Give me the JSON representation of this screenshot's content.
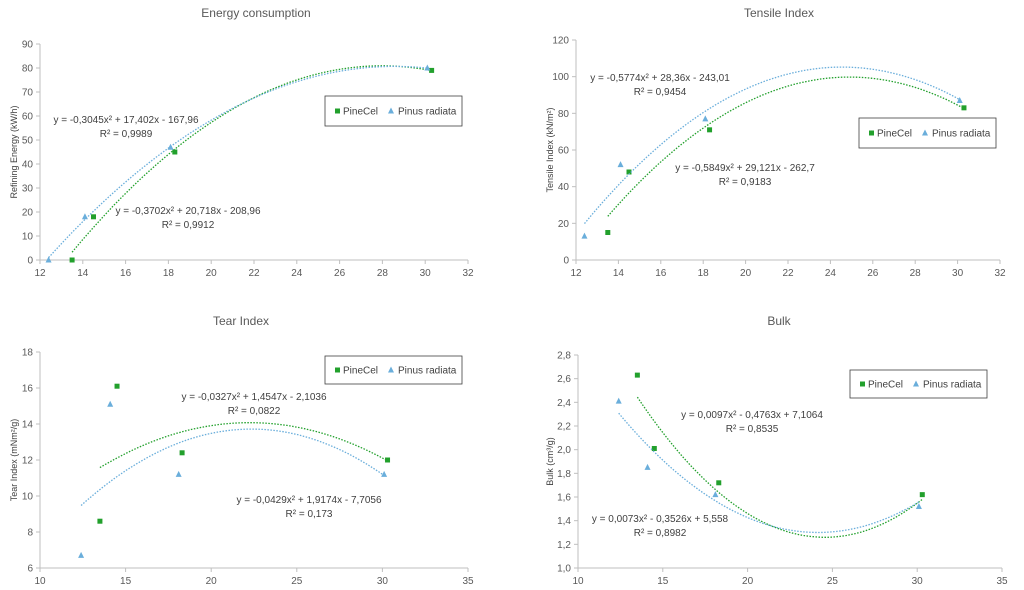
{
  "chart_data": [
    {
      "type": "scatter",
      "title": "Energy consumption",
      "xlabel": "",
      "ylabel": "Refining Energy (kW/h)",
      "xlim": [
        12,
        32
      ],
      "xticks": [
        12,
        14,
        16,
        18,
        20,
        22,
        24,
        26,
        28,
        30,
        32
      ],
      "ylim": [
        0,
        90
      ],
      "yticks": [
        0,
        10,
        20,
        30,
        40,
        50,
        60,
        70,
        80,
        90
      ],
      "legend": {
        "placement": "right-middle"
      },
      "series": [
        {
          "name": "PineCel",
          "marker": "square",
          "color": "#22a02c",
          "x": [
            13.5,
            14.5,
            18.3,
            30.3
          ],
          "y": [
            0,
            18,
            45,
            79
          ],
          "fit": {
            "a": -0.3702,
            "b": 20.718,
            "c": -208.96,
            "range": [
              13.5,
              30.3
            ]
          },
          "equation": "y = -0,3702x² + 20,718x - 208,96",
          "r2": "R² = 0,9912"
        },
        {
          "name": "Pinus radiata",
          "marker": "triangle",
          "color": "#6aaedb",
          "x": [
            12.4,
            14.1,
            18.1,
            30.1
          ],
          "y": [
            0,
            18,
            47,
            80
          ],
          "fit": {
            "a": -0.3045,
            "b": 17.402,
            "c": -167.96,
            "range": [
              12.4,
              30.1
            ]
          },
          "equation": "y = -0,3045x² + 17,402x - 167,96",
          "r2": "R² = 0,9989"
        }
      ]
    },
    {
      "type": "scatter",
      "title": "Tensile Index",
      "xlabel": "",
      "ylabel": "Tensile Index (kN/m²)",
      "xlim": [
        12,
        32
      ],
      "xticks": [
        12,
        14,
        16,
        18,
        20,
        22,
        24,
        26,
        28,
        30,
        32
      ],
      "ylim": [
        0,
        120
      ],
      "yticks": [
        0,
        20,
        40,
        60,
        80,
        100,
        120
      ],
      "legend": {
        "placement": "right-middle"
      },
      "series": [
        {
          "name": "PineCel",
          "marker": "square",
          "color": "#22a02c",
          "x": [
            13.5,
            14.5,
            18.3,
            30.3
          ],
          "y": [
            15,
            48,
            71,
            83
          ],
          "fit": {
            "a": -0.5849,
            "b": 29.121,
            "c": -262.7,
            "range": [
              13.5,
              30.3
            ]
          },
          "equation": "y = -0,5849x² + 29,121x - 262,7",
          "r2": "R² = 0,9183"
        },
        {
          "name": "Pinus radiata",
          "marker": "triangle",
          "color": "#6aaedb",
          "x": [
            12.4,
            14.1,
            18.1,
            30.1
          ],
          "y": [
            13,
            52,
            77,
            87
          ],
          "fit": {
            "a": -0.5774,
            "b": 28.36,
            "c": -243.01,
            "range": [
              12.4,
              30.1
            ]
          },
          "equation": "y = -0,5774x² + 28,36x - 243,01",
          "r2": "R² = 0,9454"
        }
      ]
    },
    {
      "type": "scatter",
      "title": "Tear Index",
      "xlabel": "",
      "ylabel": "Tear Index (mNm²/g)",
      "xlim": [
        10,
        35
      ],
      "xticks": [
        10,
        15,
        20,
        25,
        30,
        35
      ],
      "ylim": [
        6,
        18
      ],
      "yticks": [
        6,
        8,
        10,
        12,
        14,
        16,
        18
      ],
      "legend": {
        "placement": "top-right"
      },
      "series": [
        {
          "name": "PineCel",
          "marker": "square",
          "color": "#22a02c",
          "x": [
            13.5,
            14.5,
            18.3,
            30.3
          ],
          "y": [
            8.6,
            16.1,
            12.4,
            12.0
          ],
          "fit": {
            "a": -0.0327,
            "b": 1.4547,
            "c": -2.1036,
            "range": [
              13.5,
              30.3
            ]
          },
          "equation": "y = -0,0327x² + 1,4547x - 2,1036",
          "r2": "R² = 0,0822"
        },
        {
          "name": "Pinus radiata",
          "marker": "triangle",
          "color": "#6aaedb",
          "x": [
            12.4,
            14.1,
            18.1,
            30.1
          ],
          "y": [
            6.7,
            15.1,
            11.2,
            11.2
          ],
          "fit": {
            "a": -0.0429,
            "b": 1.9174,
            "c": -7.7056,
            "range": [
              12.4,
              30.1
            ]
          },
          "equation": "y = -0,0429x² + 1,9174x - 7,7056",
          "r2": "R² = 0,173"
        }
      ]
    },
    {
      "type": "scatter",
      "title": "Bulk",
      "xlabel": "",
      "ylabel": "Bulk (cm³/g)",
      "xlim": [
        10,
        35
      ],
      "xticks": [
        10,
        15,
        20,
        25,
        30,
        35
      ],
      "ylim": [
        1.0,
        2.8
      ],
      "yticks": [
        "1,0",
        "1,2",
        "1,4",
        "1,6",
        "1,8",
        "2,0",
        "2,2",
        "2,4",
        "2,6",
        "2,8"
      ],
      "legend": {
        "placement": "top-right"
      },
      "series": [
        {
          "name": "PineCel",
          "marker": "square",
          "color": "#22a02c",
          "x": [
            13.5,
            14.5,
            18.3,
            30.3
          ],
          "y": [
            2.63,
            2.01,
            1.72,
            1.62
          ],
          "fit": {
            "a": 0.0097,
            "b": -0.4763,
            "c": 7.1064,
            "range": [
              13.5,
              30.3
            ]
          },
          "equation": "y = 0,0097x² - 0,4763x + 7,1064",
          "r2": "R² = 0,8535"
        },
        {
          "name": "Pinus radiata",
          "marker": "triangle",
          "color": "#6aaedb",
          "x": [
            12.4,
            14.1,
            18.1,
            30.1
          ],
          "y": [
            2.41,
            1.85,
            1.62,
            1.52
          ],
          "fit": {
            "a": 0.0073,
            "b": -0.3526,
            "c": 5.558,
            "range": [
              12.4,
              30.1
            ]
          },
          "equation": "y = 0,0073x² - 0,3526x + 5,558",
          "r2": "R² = 0,8982"
        }
      ]
    }
  ]
}
